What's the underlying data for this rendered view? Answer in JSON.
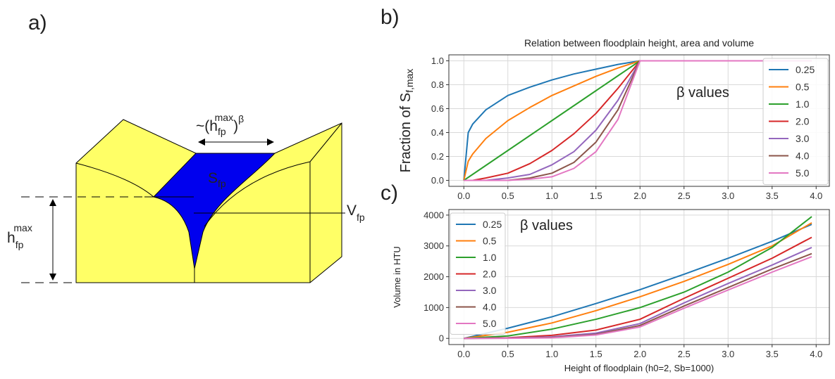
{
  "panels": {
    "a": "a)",
    "b": "b)",
    "c": "c)"
  },
  "diagram": {
    "width_label": {
      "base": "~(h",
      "sub": "fp",
      "sup": "max",
      "close": ")",
      "exp": "β"
    },
    "area_label": {
      "base": "S",
      "sub": "fp"
    },
    "volume_label": {
      "base": "V",
      "sub": "fp"
    },
    "height_label": {
      "base": "h",
      "sub": "fp",
      "sup": "max"
    }
  },
  "chart_data": [
    {
      "type": "line",
      "title": "Relation between floodplain height, area and volume",
      "ylabel": {
        "text": "Fraction of S",
        "subscript": "f,max"
      },
      "annotation": "β values",
      "x": [
        0,
        0.05,
        0.1,
        0.25,
        0.5,
        0.75,
        1,
        1.25,
        1.5,
        1.75,
        2,
        3,
        3.95
      ],
      "series": [
        {
          "name": "0.25",
          "color": "#1f77b4",
          "values": [
            0,
            0.4,
            0.47,
            0.59,
            0.71,
            0.78,
            0.84,
            0.89,
            0.93,
            0.97,
            1,
            1,
            1
          ]
        },
        {
          "name": "0.5",
          "color": "#ff7f0e",
          "values": [
            0,
            0.16,
            0.22,
            0.35,
            0.5,
            0.61,
            0.71,
            0.79,
            0.87,
            0.94,
            1,
            1,
            1
          ]
        },
        {
          "name": "1.0",
          "color": "#2ca02c",
          "values": [
            0,
            0.025,
            0.05,
            0.125,
            0.25,
            0.375,
            0.5,
            0.625,
            0.75,
            0.875,
            1,
            1,
            1
          ]
        },
        {
          "name": "2.0",
          "color": "#d62728",
          "values": [
            0,
            0,
            0,
            0.02,
            0.06,
            0.14,
            0.25,
            0.39,
            0.56,
            0.77,
            1,
            1,
            1
          ]
        },
        {
          "name": "3.0",
          "color": "#9467bd",
          "values": [
            0,
            0,
            0,
            0,
            0.02,
            0.05,
            0.13,
            0.24,
            0.42,
            0.67,
            1,
            1,
            1
          ]
        },
        {
          "name": "4.0",
          "color": "#8c564b",
          "values": [
            0,
            0,
            0,
            0,
            0,
            0.02,
            0.06,
            0.15,
            0.32,
            0.59,
            1,
            1,
            1
          ]
        },
        {
          "name": "5.0",
          "color": "#e377c2",
          "values": [
            0,
            0,
            0,
            0,
            0,
            0.01,
            0.03,
            0.1,
            0.24,
            0.51,
            1,
            1,
            1
          ]
        }
      ],
      "xlim": [
        -0.17,
        4.15
      ],
      "ylim": [
        -0.05,
        1.05
      ],
      "xticks": [
        {
          "value": 0,
          "label": "0.0"
        },
        0.5,
        {
          "value": 1,
          "label": "1.0"
        },
        1.5,
        {
          "value": 2,
          "label": "2.0"
        },
        2.5,
        {
          "value": 3,
          "label": "3.0"
        },
        3.5,
        {
          "value": 4,
          "label": "4.0"
        }
      ],
      "yticks": [
        {
          "value": 0,
          "label": "0.0"
        },
        0.2,
        0.4,
        0.6,
        0.8,
        {
          "value": 1,
          "label": "1.0"
        }
      ],
      "grid": true,
      "legend": "upper right"
    },
    {
      "type": "line",
      "xlabel": "Height of floodplain (h0=2, Sb=1000)",
      "ylabel": {
        "text": "Volume in HTU"
      },
      "annotation": "β values",
      "x": [
        0,
        0.5,
        1,
        1.5,
        2,
        2.5,
        3,
        3.5,
        3.95
      ],
      "series": [
        {
          "name": "0.25",
          "color": "#1f77b4",
          "values": [
            0,
            330,
            700,
            1130,
            1580,
            2080,
            2600,
            3150,
            3700
          ]
        },
        {
          "name": "0.5",
          "color": "#ff7f0e",
          "values": [
            0,
            200,
            500,
            900,
            1350,
            1850,
            2400,
            3000,
            3750
          ]
        },
        {
          "name": "1.0",
          "color": "#2ca02c",
          "values": [
            0,
            80,
            300,
            620,
            1000,
            1500,
            2150,
            2950,
            3950
          ]
        },
        {
          "name": "2.0",
          "color": "#d62728",
          "values": [
            0,
            20,
            100,
            270,
            620,
            1300,
            1950,
            2600,
            3280
          ]
        },
        {
          "name": "3.0",
          "color": "#9467bd",
          "values": [
            0,
            10,
            50,
            170,
            480,
            1150,
            1780,
            2380,
            2950
          ]
        },
        {
          "name": "4.0",
          "color": "#8c564b",
          "values": [
            0,
            5,
            30,
            130,
            420,
            1050,
            1650,
            2250,
            2750
          ]
        },
        {
          "name": "5.0",
          "color": "#e377c2",
          "values": [
            0,
            3,
            20,
            110,
            370,
            980,
            1570,
            2150,
            2650
          ]
        }
      ],
      "xlim": [
        -0.17,
        4.15
      ],
      "ylim": [
        -200,
        4180
      ],
      "xticks": [
        {
          "value": 0,
          "label": "0.0"
        },
        0.5,
        {
          "value": 1,
          "label": "1.0"
        },
        1.5,
        {
          "value": 2,
          "label": "2.0"
        },
        2.5,
        {
          "value": 3,
          "label": "3.0"
        },
        3.5,
        {
          "value": 4,
          "label": "4.0"
        }
      ],
      "yticks": [
        0,
        1000,
        2000,
        3000,
        4000
      ],
      "grid": true,
      "legend": "upper left"
    }
  ]
}
